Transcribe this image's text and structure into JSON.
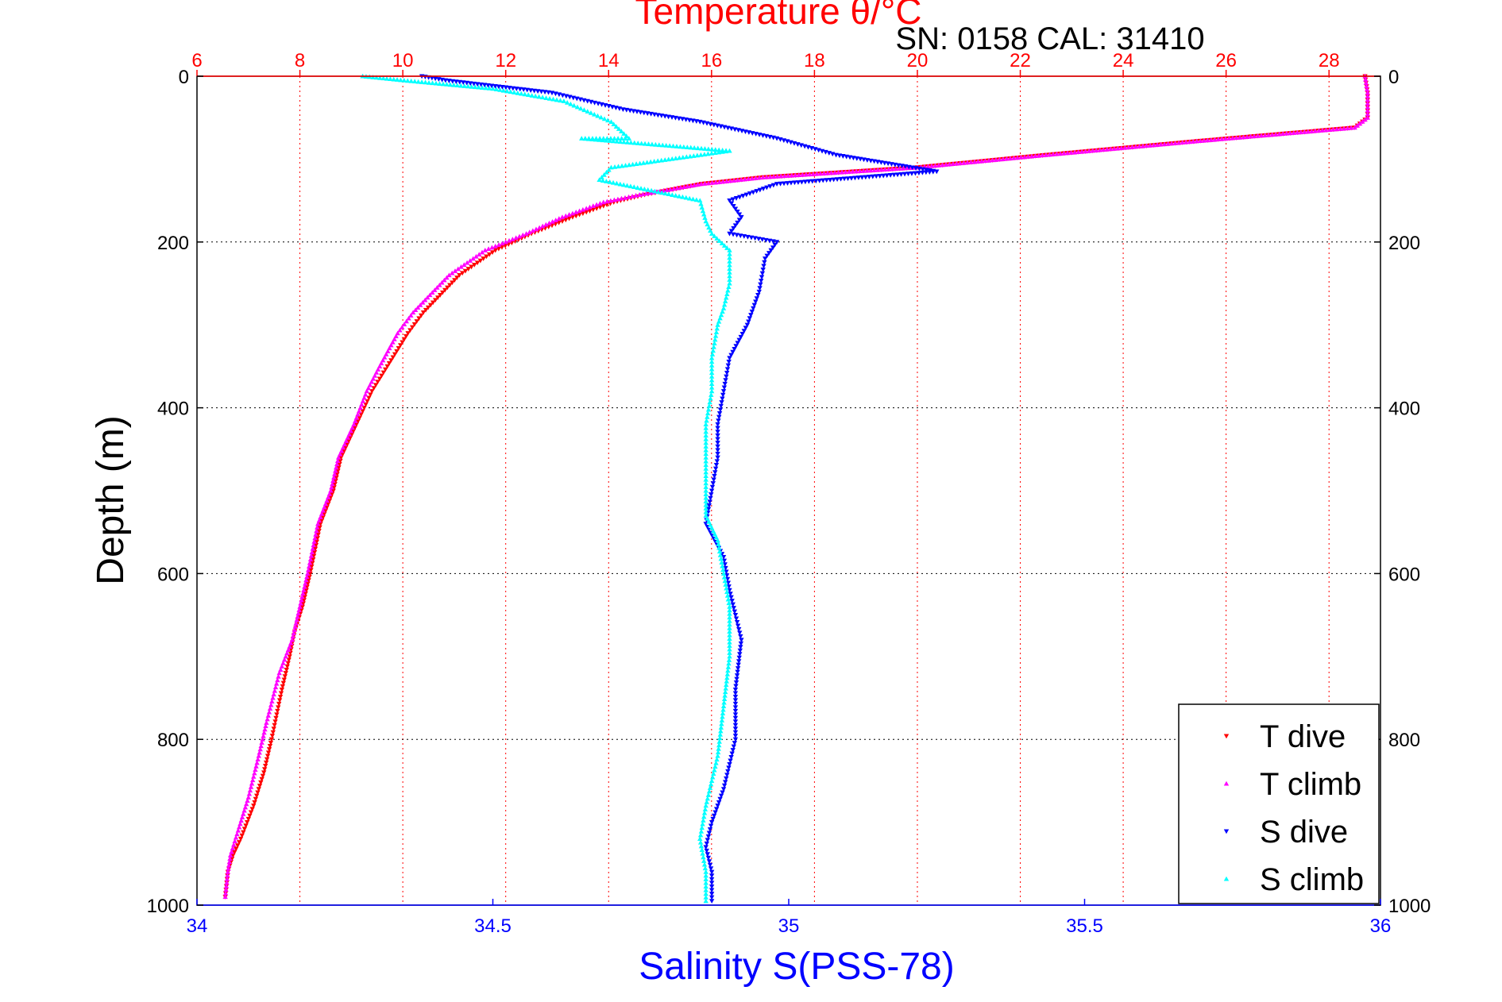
{
  "chart_data": {
    "type": "scatter",
    "title": "Temperature θ/°C",
    "subtitle": "SN: 0158  CAL: 31410",
    "xlabel": "Salinity S(PSS-78)",
    "ylabel": "Depth (m)",
    "x_top_label": "Temperature θ/°C",
    "x_top_ticks": [
      "6",
      "8",
      "10",
      "12",
      "14",
      "16",
      "18",
      "20",
      "22",
      "24",
      "26",
      "28"
    ],
    "x_top_lim": [
      6,
      29
    ],
    "x_bottom_ticks": [
      "34",
      "34.5",
      "35",
      "35.5",
      "36"
    ],
    "x_bottom_lim": [
      34,
      36
    ],
    "y_ticks": [
      "0",
      "200",
      "400",
      "600",
      "800",
      "1000"
    ],
    "y_lim": [
      0,
      1000
    ],
    "y_reversed": true,
    "grid": true,
    "legend_position": "bottom-right",
    "colors": {
      "t_dive": "#ff0000",
      "t_climb": "#ff00ff",
      "s_dive": "#0000ff",
      "s_climb": "#00ffff",
      "top_axis": "#ff0000",
      "bottom_axis": "#0000ff"
    },
    "series": [
      {
        "name": "T dive",
        "axis": "temperature",
        "marker": "triangle-down",
        "color": "#ff0000",
        "points": [
          [
            28.7,
            0
          ],
          [
            28.75,
            20
          ],
          [
            28.75,
            50
          ],
          [
            28.5,
            62
          ],
          [
            25.5,
            78
          ],
          [
            22.5,
            95
          ],
          [
            20,
            110
          ],
          [
            17,
            122
          ],
          [
            15.8,
            130
          ],
          [
            14.7,
            143
          ],
          [
            14.1,
            152
          ],
          [
            13.3,
            170
          ],
          [
            12.5,
            190
          ],
          [
            11.8,
            210
          ],
          [
            11.1,
            240
          ],
          [
            10.4,
            285
          ],
          [
            10.1,
            310
          ],
          [
            9.7,
            350
          ],
          [
            9.4,
            380
          ],
          [
            9.1,
            420
          ],
          [
            8.8,
            460
          ],
          [
            8.65,
            500
          ],
          [
            8.4,
            540
          ],
          [
            8.2,
            600
          ],
          [
            8.05,
            640
          ],
          [
            7.9,
            670
          ],
          [
            7.8,
            700
          ],
          [
            7.65,
            740
          ],
          [
            7.45,
            800
          ],
          [
            7.3,
            840
          ],
          [
            7.1,
            880
          ],
          [
            6.85,
            920
          ],
          [
            6.7,
            940
          ],
          [
            6.6,
            960
          ],
          [
            6.55,
            990
          ]
        ]
      },
      {
        "name": "T climb",
        "axis": "temperature",
        "marker": "triangle-up",
        "color": "#ff00ff",
        "points": [
          [
            28.7,
            0
          ],
          [
            28.75,
            20
          ],
          [
            28.75,
            50
          ],
          [
            28.5,
            62
          ],
          [
            25.5,
            78
          ],
          [
            22.5,
            95
          ],
          [
            20,
            110
          ],
          [
            17,
            122
          ],
          [
            15.8,
            130
          ],
          [
            14.6,
            143
          ],
          [
            13.9,
            152
          ],
          [
            13.1,
            170
          ],
          [
            12.4,
            190
          ],
          [
            11.6,
            210
          ],
          [
            10.9,
            240
          ],
          [
            10.2,
            285
          ],
          [
            9.9,
            310
          ],
          [
            9.55,
            350
          ],
          [
            9.3,
            380
          ],
          [
            9.05,
            420
          ],
          [
            8.75,
            460
          ],
          [
            8.6,
            500
          ],
          [
            8.35,
            540
          ],
          [
            8.15,
            600
          ],
          [
            8.0,
            640
          ],
          [
            7.85,
            680
          ],
          [
            7.6,
            720
          ],
          [
            7.35,
            780
          ],
          [
            7.2,
            820
          ],
          [
            7.0,
            870
          ],
          [
            6.8,
            910
          ],
          [
            6.65,
            940
          ],
          [
            6.6,
            960
          ],
          [
            6.55,
            990
          ]
        ]
      },
      {
        "name": "S dive",
        "axis": "salinity",
        "marker": "triangle-down",
        "color": "#0000ff",
        "points": [
          [
            34.38,
            0
          ],
          [
            34.42,
            5
          ],
          [
            34.6,
            20
          ],
          [
            34.72,
            40
          ],
          [
            34.85,
            55
          ],
          [
            34.98,
            75
          ],
          [
            35.08,
            95
          ],
          [
            35.25,
            115
          ],
          [
            34.98,
            130
          ],
          [
            34.9,
            150
          ],
          [
            34.92,
            170
          ],
          [
            34.9,
            190
          ],
          [
            34.98,
            200
          ],
          [
            34.96,
            220
          ],
          [
            34.95,
            260
          ],
          [
            34.93,
            300
          ],
          [
            34.9,
            340
          ],
          [
            34.89,
            380
          ],
          [
            34.88,
            420
          ],
          [
            34.88,
            460
          ],
          [
            34.87,
            500
          ],
          [
            34.86,
            540
          ],
          [
            34.89,
            580
          ],
          [
            34.9,
            620
          ],
          [
            34.92,
            680
          ],
          [
            34.91,
            740
          ],
          [
            34.91,
            800
          ],
          [
            34.89,
            860
          ],
          [
            34.87,
            900
          ],
          [
            34.86,
            930
          ],
          [
            34.87,
            960
          ],
          [
            34.87,
            995
          ]
        ]
      },
      {
        "name": "S climb",
        "axis": "salinity",
        "marker": "triangle-up",
        "color": "#00ffff",
        "points": [
          [
            34.28,
            0
          ],
          [
            34.35,
            5
          ],
          [
            34.5,
            15
          ],
          [
            34.62,
            30
          ],
          [
            34.7,
            55
          ],
          [
            34.73,
            75
          ],
          [
            34.65,
            75
          ],
          [
            34.9,
            90
          ],
          [
            34.7,
            110
          ],
          [
            34.68,
            125
          ],
          [
            34.85,
            150
          ],
          [
            34.86,
            175
          ],
          [
            34.87,
            190
          ],
          [
            34.9,
            210
          ],
          [
            34.9,
            250
          ],
          [
            34.89,
            280
          ],
          [
            34.88,
            300
          ],
          [
            34.87,
            340
          ],
          [
            34.87,
            380
          ],
          [
            34.86,
            420
          ],
          [
            34.86,
            460
          ],
          [
            34.86,
            500
          ],
          [
            34.86,
            530
          ],
          [
            34.88,
            560
          ],
          [
            34.89,
            600
          ],
          [
            34.9,
            640
          ],
          [
            34.9,
            700
          ],
          [
            34.89,
            760
          ],
          [
            34.88,
            820
          ],
          [
            34.86,
            880
          ],
          [
            34.85,
            920
          ],
          [
            34.86,
            960
          ],
          [
            34.86,
            995
          ]
        ]
      }
    ]
  }
}
